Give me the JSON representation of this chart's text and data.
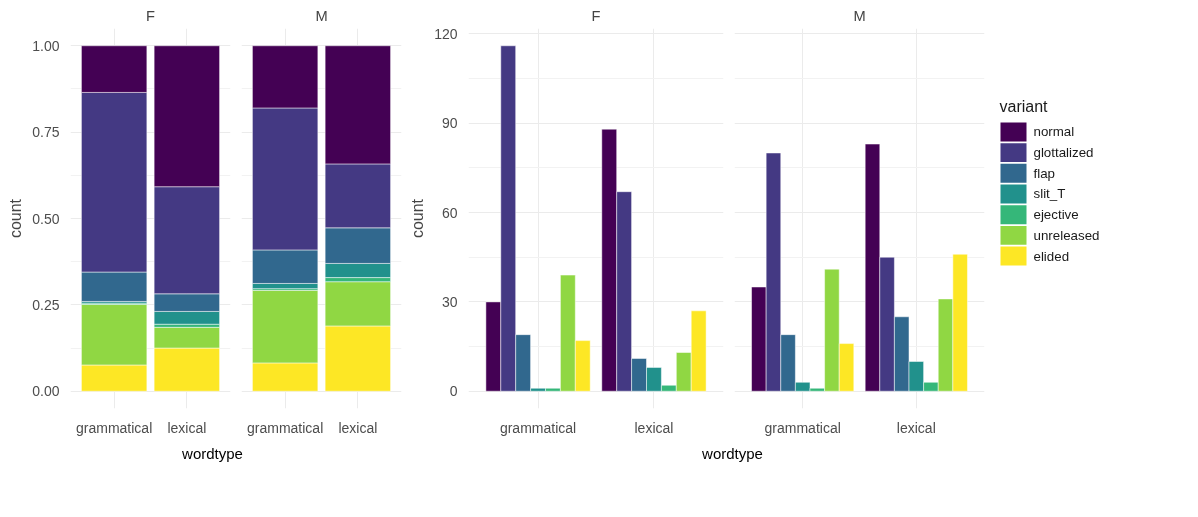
{
  "chart_data": [
    {
      "type": "bar",
      "stacked": true,
      "title": "F",
      "xlabel": "wordtype",
      "ylabel": "count",
      "categories": [
        "grammatical",
        "lexical"
      ],
      "ylim": [
        -0.05,
        1.05
      ],
      "yticks": [
        {
          "value": 0,
          "label": "0.00"
        },
        {
          "value": 0.25,
          "label": "0.25"
        },
        {
          "value": 0.5,
          "label": "0.50"
        },
        {
          "value": 0.75,
          "label": "0.75"
        },
        {
          "value": 1,
          "label": "1.00"
        }
      ],
      "grid": true,
      "series": [
        {
          "color": "#fde725",
          "values": [
            0.076,
            0.125
          ]
        },
        {
          "color": "#90d743",
          "values": [
            0.175,
            0.06
          ]
        },
        {
          "color": "#35b779",
          "values": [
            0.004,
            0.009
          ]
        },
        {
          "color": "#21918c",
          "values": [
            0.005,
            0.037
          ]
        },
        {
          "color": "#31688e",
          "values": [
            0.085,
            0.051
          ]
        },
        {
          "color": "#443983",
          "values": [
            0.52,
            0.31
          ]
        },
        {
          "color": "#440154",
          "values": [
            0.135,
            0.408
          ]
        }
      ]
    },
    {
      "type": "bar",
      "stacked": true,
      "title": "M",
      "categories": [
        "grammatical",
        "lexical"
      ],
      "ylim": [
        -0.05,
        1.05
      ],
      "yticks": [
        0,
        0.25,
        0.5,
        0.75,
        1
      ],
      "grid": true,
      "tick_labels": "x",
      "series": [
        {
          "color": "#fde725",
          "values": [
            0.082,
            0.189
          ]
        },
        {
          "color": "#90d743",
          "values": [
            0.21,
            0.128
          ]
        },
        {
          "color": "#35b779",
          "values": [
            0.005,
            0.012
          ]
        },
        {
          "color": "#21918c",
          "values": [
            0.015,
            0.041
          ]
        },
        {
          "color": "#31688e",
          "values": [
            0.097,
            0.103
          ]
        },
        {
          "color": "#443983",
          "values": [
            0.411,
            0.185
          ]
        },
        {
          "color": "#440154",
          "values": [
            0.18,
            0.342
          ]
        }
      ]
    },
    {
      "type": "bar",
      "title": "F",
      "xlabel": "wordtype",
      "ylabel": "count",
      "categories": [
        "grammatical",
        "lexical"
      ],
      "ylim": [
        -5.8,
        121.8
      ],
      "yticks": [
        0,
        30,
        60,
        90,
        120
      ],
      "grid": true,
      "series": [
        {
          "color": "#440154",
          "values": [
            30,
            88
          ]
        },
        {
          "color": "#443983",
          "values": [
            116,
            67
          ]
        },
        {
          "color": "#31688e",
          "values": [
            19,
            11
          ]
        },
        {
          "color": "#21918c",
          "values": [
            1,
            8
          ]
        },
        {
          "color": "#35b779",
          "values": [
            1,
            2
          ]
        },
        {
          "color": "#90d743",
          "values": [
            39,
            13
          ]
        },
        {
          "color": "#fde725",
          "values": [
            17,
            27
          ]
        }
      ]
    },
    {
      "type": "bar",
      "title": "M",
      "categories": [
        "grammatical",
        "lexical"
      ],
      "ylim": [
        -5.8,
        121.8
      ],
      "yticks": [
        0,
        30,
        60,
        90,
        120
      ],
      "grid": true,
      "tick_labels": "x",
      "legend": "right",
      "legend_title": "variant",
      "series": [
        {
          "name": "normal",
          "color": "#440154",
          "values": [
            35,
            83
          ]
        },
        {
          "name": "glottalized",
          "color": "#443983",
          "values": [
            80,
            45
          ]
        },
        {
          "name": "flap",
          "color": "#31688e",
          "values": [
            19,
            25
          ]
        },
        {
          "name": "slit_T",
          "color": "#21918c",
          "values": [
            3,
            10
          ]
        },
        {
          "name": "ejective",
          "color": "#35b779",
          "values": [
            1,
            3
          ]
        },
        {
          "name": "unreleased",
          "color": "#90d743",
          "values": [
            41,
            31
          ]
        },
        {
          "name": "elided",
          "color": "#fde725",
          "values": [
            16,
            46
          ]
        }
      ]
    }
  ]
}
